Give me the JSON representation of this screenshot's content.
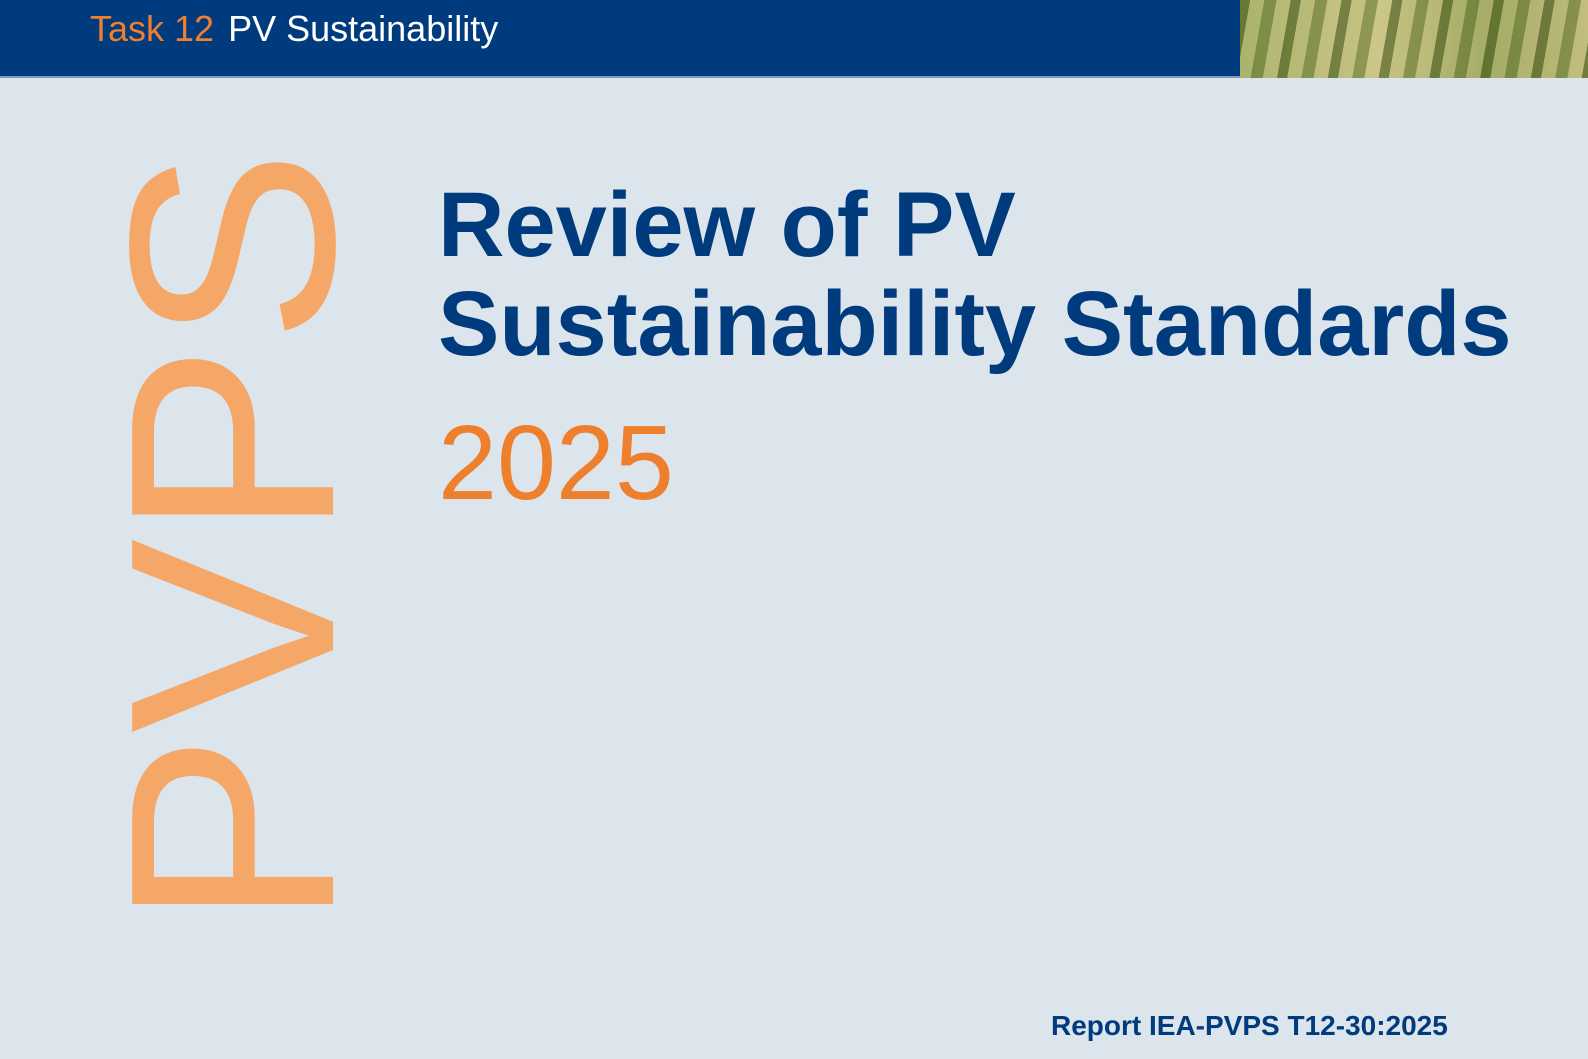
{
  "header": {
    "task": "Task 12",
    "subtitle": "PV Sustainability",
    "bar_color": "#003b7e",
    "photo": "grass-field-photo"
  },
  "logo_text": "PVPS",
  "title": {
    "line1": "Review of PV",
    "line2": "Sustainability Standards"
  },
  "year": "2025",
  "report_number": "Report IEA-PVPS T12-30:2025",
  "colors": {
    "navy": "#003b7e",
    "orange": "#ee7f2d",
    "light_orange": "#f4a767",
    "background": "#dce4ec"
  }
}
